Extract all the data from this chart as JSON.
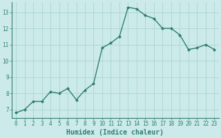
{
  "x": [
    0,
    1,
    2,
    3,
    4,
    5,
    6,
    7,
    8,
    9,
    10,
    11,
    12,
    13,
    14,
    15,
    16,
    17,
    18,
    19,
    20,
    21,
    22,
    23
  ],
  "y": [
    6.8,
    7.0,
    7.5,
    7.5,
    8.1,
    8.0,
    8.3,
    7.6,
    8.2,
    8.6,
    10.8,
    11.1,
    11.5,
    13.3,
    13.2,
    12.8,
    12.6,
    12.0,
    12.0,
    11.6,
    10.7,
    10.8,
    11.0,
    10.7
  ],
  "line_color": "#2d7d6d",
  "marker": "D",
  "marker_size": 2.2,
  "bg_color": "#cdeaea",
  "grid_color": "#b0d8d8",
  "xlabel": "Humidex (Indice chaleur)",
  "ylim": [
    6.5,
    13.6
  ],
  "xlim": [
    -0.5,
    23.5
  ],
  "yticks": [
    7,
    8,
    9,
    10,
    11,
    12,
    13
  ],
  "xticks": [
    0,
    1,
    2,
    3,
    4,
    5,
    6,
    7,
    8,
    9,
    10,
    11,
    12,
    13,
    14,
    15,
    16,
    17,
    18,
    19,
    20,
    21,
    22,
    23
  ],
  "tick_color": "#2d7d6d",
  "tick_fontsize": 5.5,
  "xlabel_fontsize": 7.0,
  "line_width": 1.0,
  "spine_color": "#2d7d6d"
}
